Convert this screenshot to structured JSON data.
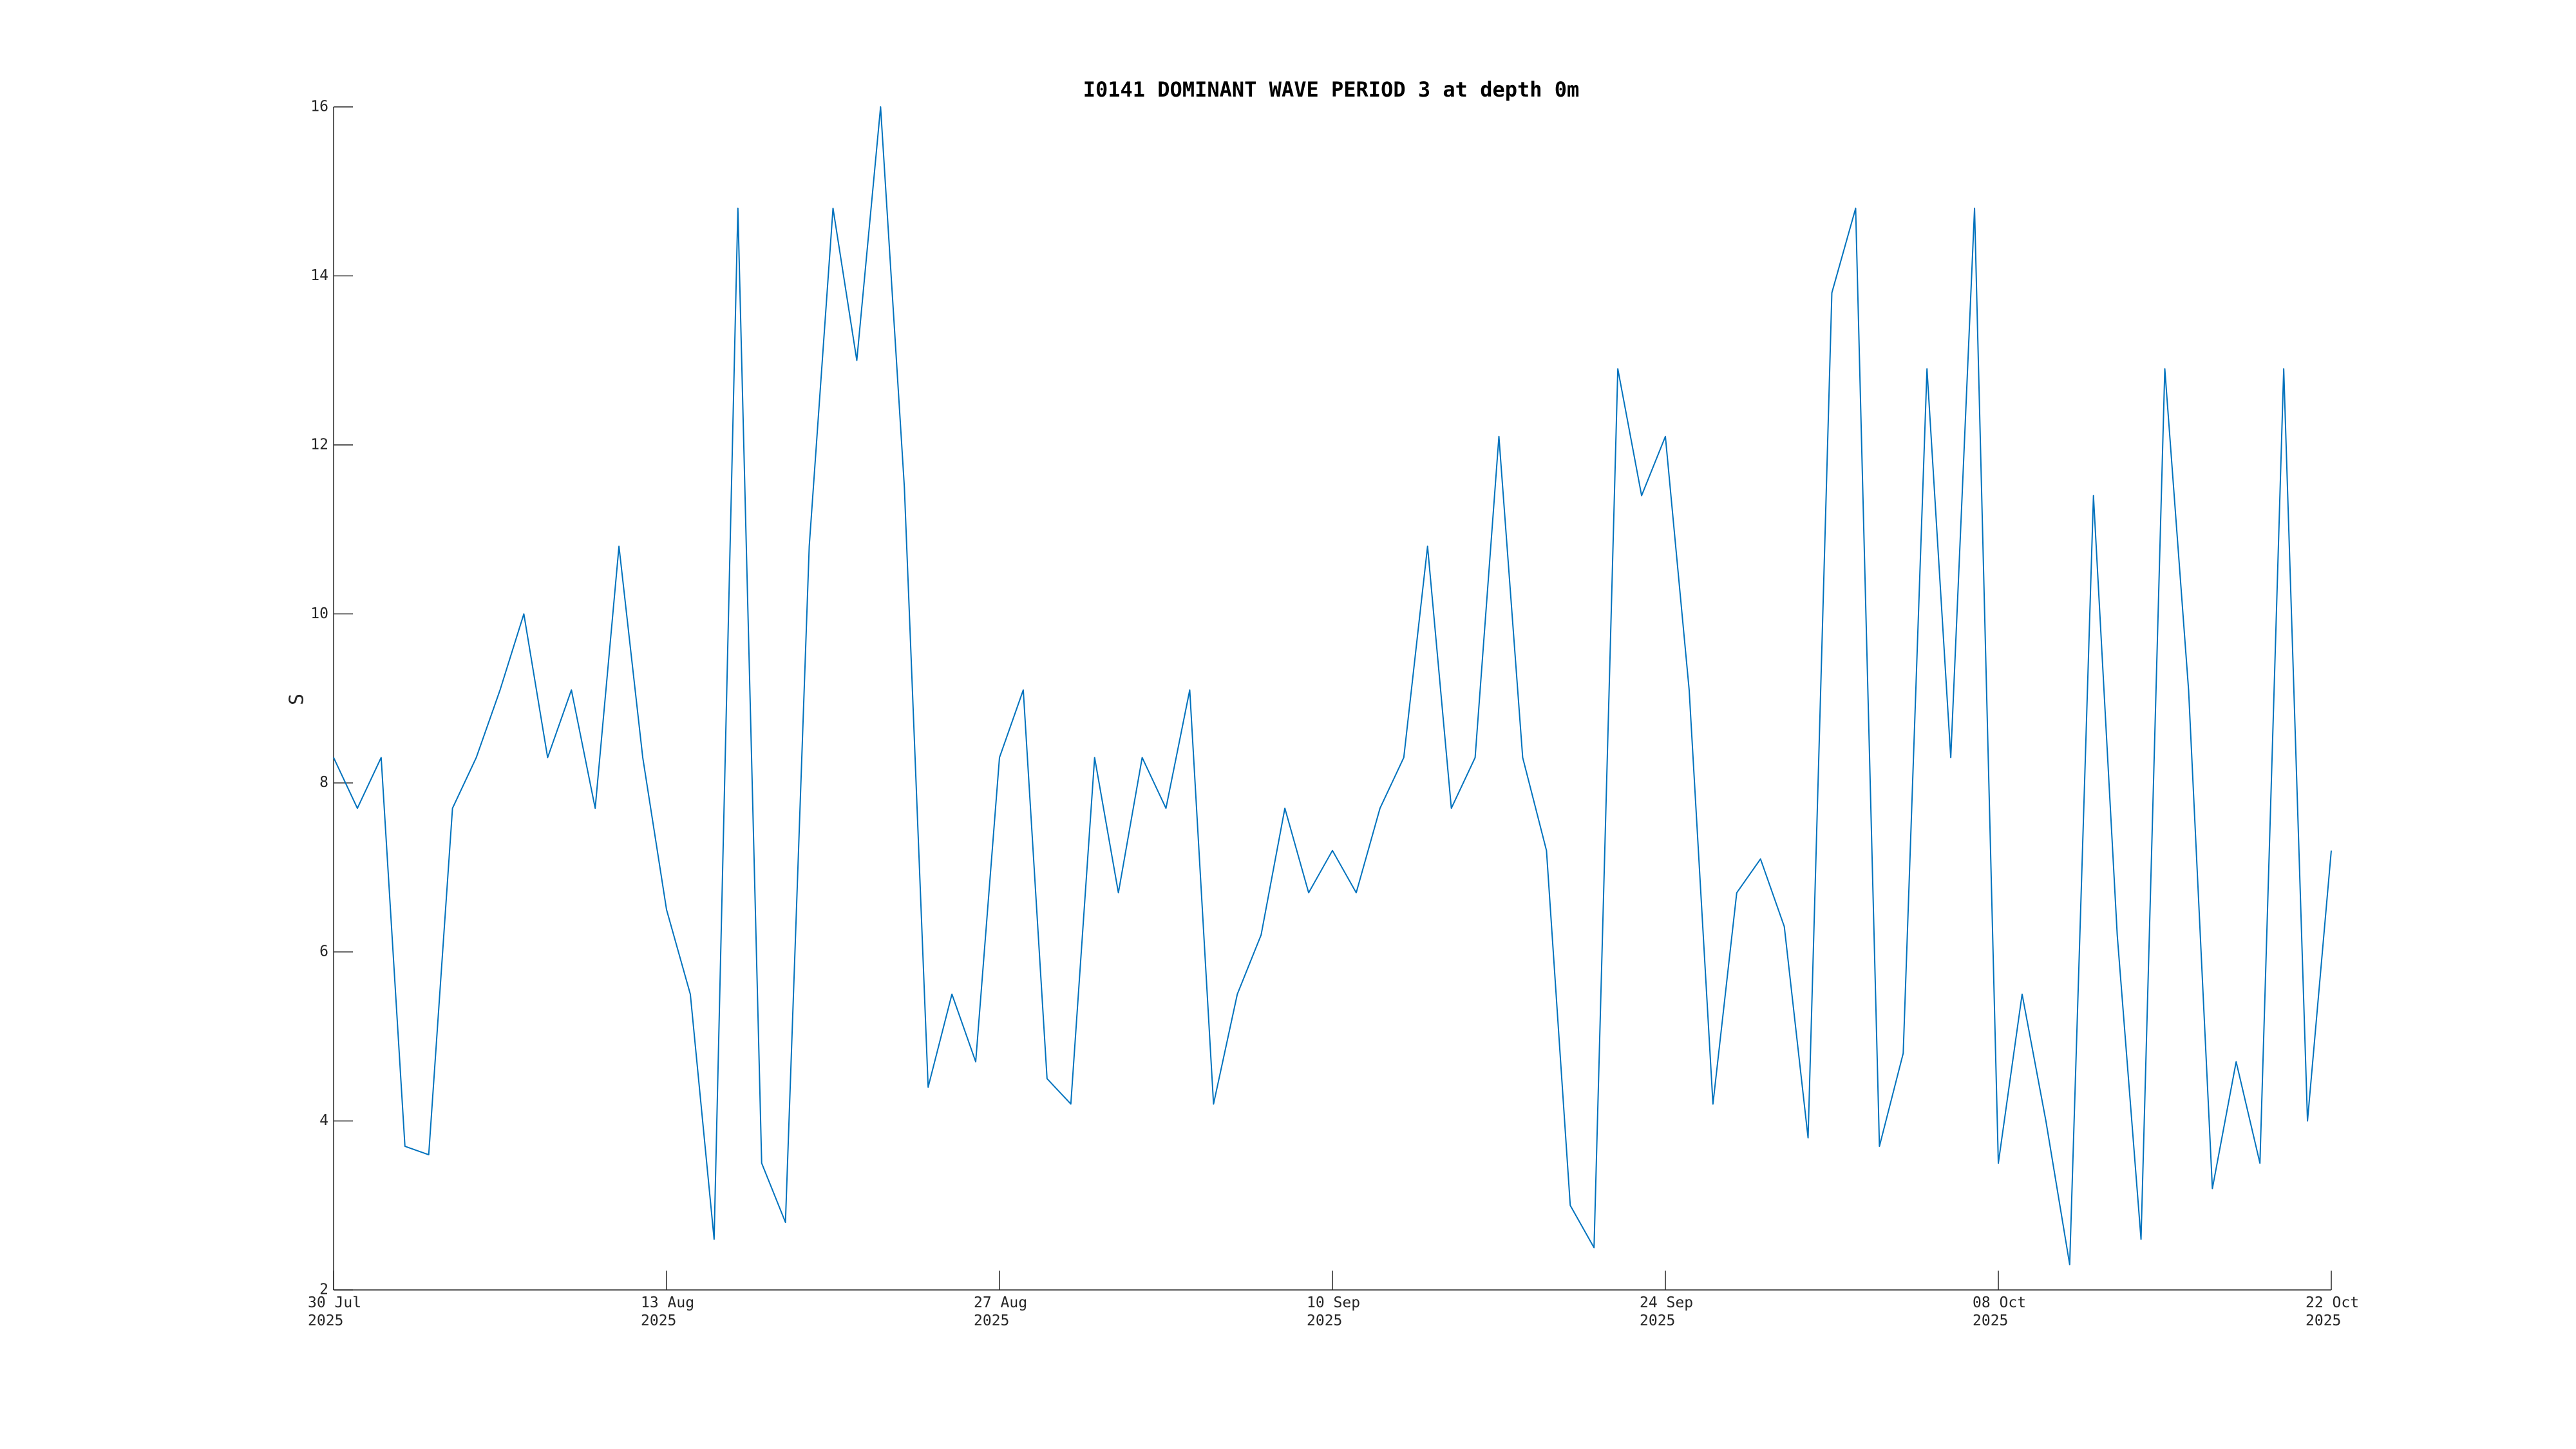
{
  "chart_data": {
    "type": "line",
    "title": "I0141 DOMINANT WAVE PERIOD 3 at depth 0m",
    "ylabel": "S",
    "x": [
      "2025-07-30",
      "2025-07-31",
      "2025-08-01",
      "2025-08-02",
      "2025-08-03",
      "2025-08-04",
      "2025-08-05",
      "2025-08-06",
      "2025-08-07",
      "2025-08-08",
      "2025-08-09",
      "2025-08-10",
      "2025-08-11",
      "2025-08-12",
      "2025-08-13",
      "2025-08-14",
      "2025-08-15",
      "2025-08-16",
      "2025-08-17",
      "2025-08-18",
      "2025-08-19",
      "2025-08-20",
      "2025-08-21",
      "2025-08-22",
      "2025-08-23",
      "2025-08-24",
      "2025-08-25",
      "2025-08-26",
      "2025-08-27",
      "2025-08-28",
      "2025-08-29",
      "2025-08-30",
      "2025-08-31",
      "2025-09-01",
      "2025-09-02",
      "2025-09-03",
      "2025-09-04",
      "2025-09-05",
      "2025-09-06",
      "2025-09-07",
      "2025-09-08",
      "2025-09-09",
      "2025-09-10",
      "2025-09-11",
      "2025-09-12",
      "2025-09-13",
      "2025-09-14",
      "2025-09-15",
      "2025-09-16",
      "2025-09-17",
      "2025-09-18",
      "2025-09-19",
      "2025-09-20",
      "2025-09-21",
      "2025-09-22",
      "2025-09-23",
      "2025-09-24",
      "2025-09-25",
      "2025-09-26",
      "2025-09-27",
      "2025-09-28",
      "2025-09-29",
      "2025-09-30",
      "2025-10-01",
      "2025-10-02",
      "2025-10-03",
      "2025-10-04",
      "2025-10-05",
      "2025-10-06",
      "2025-10-07",
      "2025-10-08",
      "2025-10-09",
      "2025-10-10",
      "2025-10-11",
      "2025-10-12",
      "2025-10-13",
      "2025-10-14",
      "2025-10-15",
      "2025-10-16",
      "2025-10-17",
      "2025-10-18",
      "2025-10-19",
      "2025-10-20",
      "2025-10-21",
      "2025-10-22"
    ],
    "series": [
      {
        "name": "DOMINANT WAVE PERIOD 3",
        "color": "#0072bd",
        "values": [
          8.3,
          7.7,
          8.3,
          3.7,
          3.6,
          7.7,
          8.3,
          9.1,
          10,
          8.3,
          9.1,
          7.7,
          10.8,
          8.3,
          6.5,
          5.5,
          2.6,
          14.8,
          3.5,
          2.8,
          10.8,
          14.8,
          13.0,
          16,
          11.5,
          4.4,
          5.5,
          4.7,
          8.3,
          9.1,
          4.5,
          4.2,
          8.3,
          6.7,
          8.3,
          7.7,
          9.1,
          4.2,
          5.5,
          6.2,
          7.7,
          6.7,
          7.2,
          6.7,
          7.7,
          8.3,
          10.8,
          7.7,
          8.3,
          12.1,
          8.3,
          7.2,
          3.0,
          2.5,
          12.9,
          11.4,
          12.1,
          9.1,
          4.2,
          6.7,
          7.1,
          6.3,
          3.8,
          13.8,
          14.8,
          3.7,
          4.8,
          12.9,
          8.3,
          14.8,
          3.5,
          5.5,
          4.0,
          2.3,
          11.4,
          6.2,
          2.6,
          12.9,
          9.1,
          3.2,
          4.7,
          3.5,
          12.9,
          4.0,
          7.2
        ]
      }
    ],
    "xlim": [
      "2025-07-30",
      "2025-10-22"
    ],
    "xticks": [
      {
        "value": "2025-07-30",
        "label": "30 Jul\n2025"
      },
      {
        "value": "2025-08-13",
        "label": "13 Aug\n2025"
      },
      {
        "value": "2025-08-27",
        "label": "27 Aug\n2025"
      },
      {
        "value": "2025-09-10",
        "label": "10 Sep\n2025"
      },
      {
        "value": "2025-09-24",
        "label": "24 Sep\n2025"
      },
      {
        "value": "2025-10-08",
        "label": "08 Oct\n2025"
      },
      {
        "value": "2025-10-22",
        "label": "22 Oct\n2025"
      }
    ],
    "ylim": [
      2,
      16
    ],
    "yticks": [
      2,
      4,
      6,
      8,
      10,
      12,
      14,
      16
    ],
    "grid": false
  }
}
